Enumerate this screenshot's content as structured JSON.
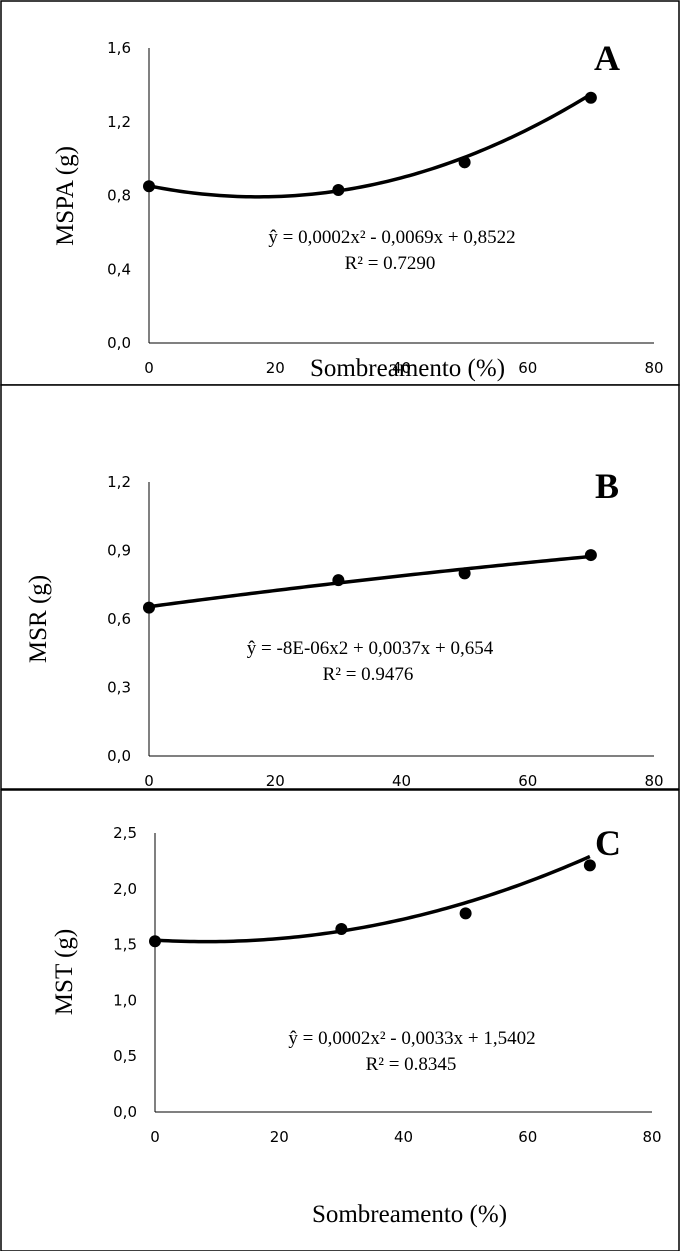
{
  "chart_data": [
    {
      "type": "scatter",
      "panel": "A",
      "xlabel": "Sombreamento (%)",
      "ylabel": "MSPA (g)",
      "x_ticks": [
        "0",
        "20",
        "40",
        "60",
        "80"
      ],
      "y_ticks": [
        "0,0",
        "0,4",
        "0,8",
        "1,2",
        "1,6"
      ],
      "xlim": [
        0,
        80
      ],
      "ylim": [
        0,
        1.6
      ],
      "x": [
        0,
        30,
        50,
        70
      ],
      "y": [
        0.85,
        0.83,
        0.98,
        1.33
      ],
      "fit": {
        "type": "quadratic",
        "a": 0.0002,
        "b": -0.0069,
        "c": 0.8522
      },
      "equation_text": "ŷ  = 0,0002x² - 0,0069x + 0,8522",
      "r2_text": "R² = 0.7290",
      "grid": false
    },
    {
      "type": "scatter",
      "panel": "B",
      "xlabel": "Sombreamento (%)",
      "ylabel": "MSR (g)",
      "x_ticks": [
        "0",
        "20",
        "40",
        "60",
        "80"
      ],
      "y_ticks": [
        "0,0",
        "0,3",
        "0,6",
        "0,9",
        "1,2"
      ],
      "xlim": [
        0,
        80
      ],
      "ylim": [
        0,
        1.2
      ],
      "x": [
        0,
        30,
        50,
        70
      ],
      "y": [
        0.65,
        0.77,
        0.8,
        0.88
      ],
      "fit": {
        "type": "quadratic",
        "a": -8e-06,
        "b": 0.0037,
        "c": 0.654
      },
      "equation_text": "ŷ  = -8E-06x2 + 0,0037x + 0,654",
      "r2_text": "R² = 0.9476",
      "grid": false
    },
    {
      "type": "scatter",
      "panel": "C",
      "xlabel": "Sombreamento (%)",
      "ylabel": "MST (g)",
      "x_ticks": [
        "0",
        "20",
        "40",
        "60",
        "80"
      ],
      "y_ticks": [
        "0,0",
        "0,5",
        "1,0",
        "1,5",
        "2,0",
        "2,5"
      ],
      "xlim": [
        0,
        80
      ],
      "ylim": [
        0,
        2.5
      ],
      "x": [
        0,
        30,
        50,
        70
      ],
      "y": [
        1.53,
        1.64,
        1.78,
        2.21
      ],
      "fit": {
        "type": "quadratic",
        "a": 0.0002,
        "b": -0.0033,
        "c": 1.5402
      },
      "equation_text": "ŷ  = 0,0002x² - 0,0033x + 1,5402",
      "r2_text": "R² = 0.8345",
      "grid": false
    }
  ]
}
